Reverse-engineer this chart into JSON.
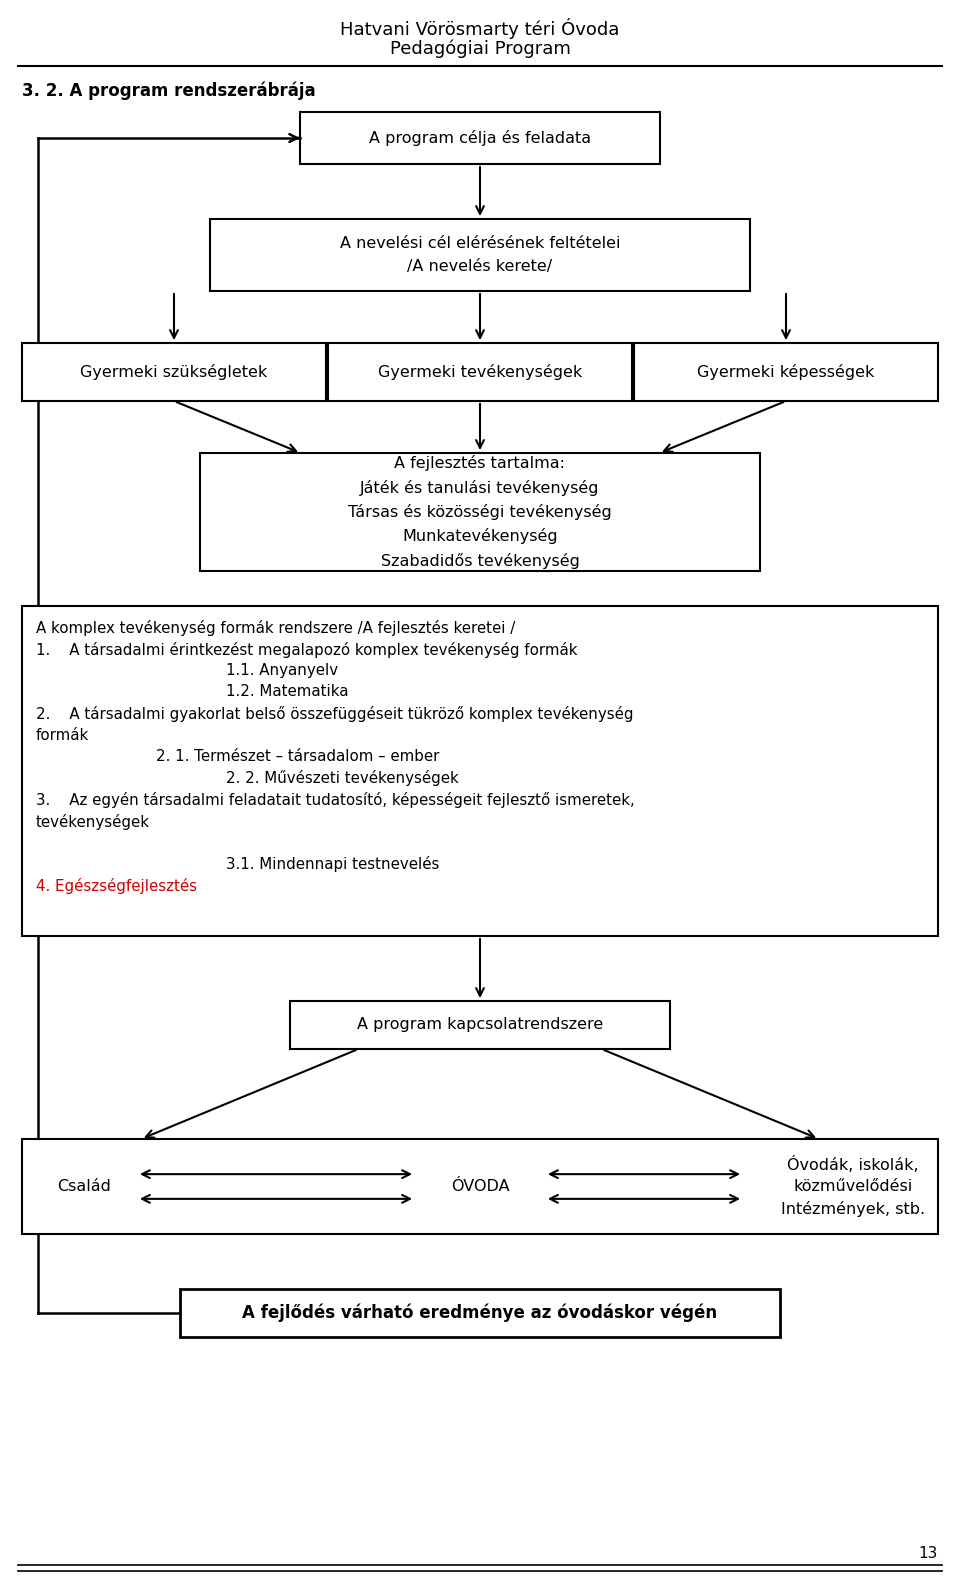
{
  "title_line1": "Hatvani Vörösmarty téri Óvoda",
  "title_line2": "Pedagógiai Program",
  "section_title": "3. 2. A program rendszerábrája",
  "page_number": "13",
  "box1_text": "A program célja és feladata",
  "box2_text": "A nevelési cél elérésének feltételei\n/A nevelés kerete/",
  "box3a_text": "Gyermeki szükségletek",
  "box3b_text": "Gyermeki tevékenységek",
  "box3c_text": "Gyermeki képességek",
  "box4_text": "A fejlesztés tartalma:\nJáték és tanulási tevékenység\nTársas és közösségi tevékenység\nMunkatevékenység\nSzabadidős tevékenység",
  "box6_text": "A program kapcsolatrendszere",
  "box7_left": "Család",
  "box7_center": "ÓVODA",
  "box7_right": "Óvodák, iskolák,\nközművelődési\nIntézmények, stb.",
  "box8_text": "A fejlődés várható eredménye az óvodáskor végén",
  "background_color": "#ffffff",
  "text_color": "#000000",
  "red_color": "#cc0000",
  "figw": 9.6,
  "figh": 15.89,
  "dpi": 100
}
